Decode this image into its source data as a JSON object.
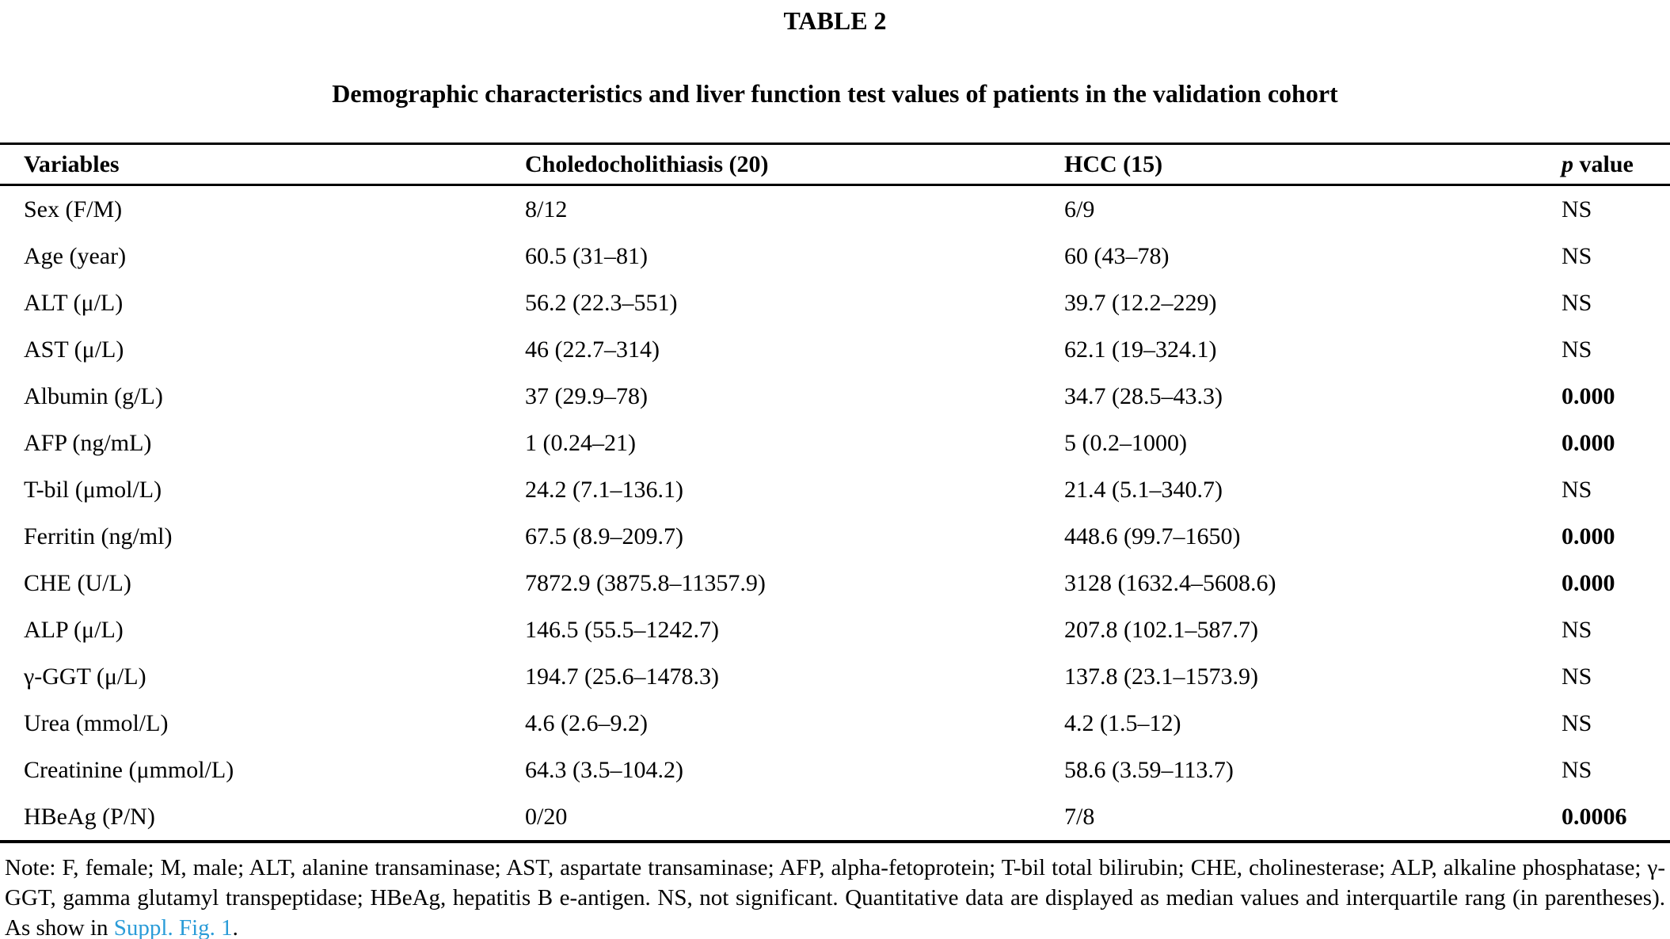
{
  "table": {
    "label": "TABLE 2",
    "caption": "Demographic characteristics and liver function test values of patients in the validation cohort",
    "columns": [
      "Variables",
      "Choledocholithiasis (20)",
      "HCC (15)"
    ],
    "p_header_italic": "p",
    "p_header_rest": " value",
    "not_significant_marker": "NS",
    "rows": [
      {
        "variable": "Sex (F/M)",
        "choledocholithiasis": "8/12",
        "hcc": "6/9",
        "p": "NS"
      },
      {
        "variable": "Age (year)",
        "choledocholithiasis": "60.5 (31–81)",
        "hcc": "60 (43–78)",
        "p": "NS"
      },
      {
        "variable": "ALT (μ/L)",
        "choledocholithiasis": "56.2 (22.3–551)",
        "hcc": "39.7 (12.2–229)",
        "p": "NS"
      },
      {
        "variable": "AST (μ/L)",
        "choledocholithiasis": "46 (22.7–314)",
        "hcc": "62.1 (19–324.1)",
        "p": "NS"
      },
      {
        "variable": "Albumin (g/L)",
        "choledocholithiasis": "37 (29.9–78)",
        "hcc": "34.7 (28.5–43.3)",
        "p": "0.000"
      },
      {
        "variable": "AFP (ng/mL)",
        "choledocholithiasis": "1 (0.24–21)",
        "hcc": "5 (0.2–1000)",
        "p": "0.000"
      },
      {
        "variable": "T-bil (μmol/L)",
        "choledocholithiasis": "24.2 (7.1–136.1)",
        "hcc": "21.4 (5.1–340.7)",
        "p": "NS"
      },
      {
        "variable": "Ferritin (ng/ml)",
        "choledocholithiasis": "67.5 (8.9–209.7)",
        "hcc": "448.6 (99.7–1650)",
        "p": "0.000"
      },
      {
        "variable": "CHE (U/L)",
        "choledocholithiasis": "7872.9 (3875.8–11357.9)",
        "hcc": "3128 (1632.4–5608.6)",
        "p": "0.000"
      },
      {
        "variable": "ALP (μ/L)",
        "choledocholithiasis": "146.5 (55.5–1242.7)",
        "hcc": "207.8 (102.1–587.7)",
        "p": "NS"
      },
      {
        "variable": "γ-GGT (μ/L)",
        "choledocholithiasis": "194.7 (25.6–1478.3)",
        "hcc": "137.8 (23.1–1573.9)",
        "p": "NS"
      },
      {
        "variable": "Urea (mmol/L)",
        "choledocholithiasis": "4.6 (2.6–9.2)",
        "hcc": "4.2 (1.5–12)",
        "p": "NS"
      },
      {
        "variable": "Creatinine (μmmol/L)",
        "choledocholithiasis": "64.3 (3.5–104.2)",
        "hcc": "58.6 (3.59–113.7)",
        "p": "NS"
      },
      {
        "variable": "HBeAg (P/N)",
        "choledocholithiasis": "0/20",
        "hcc": "7/8",
        "p": "0.0006"
      }
    ]
  },
  "note": {
    "text_before_link": "Note: F, female; M, male; ALT, alanine transaminase; AST, aspartate transaminase; AFP, alpha-fetoprotein; T-bil total bilirubin; CHE, cholinesterase; ALP, alkaline phosphatase; γ-GGT, gamma glutamyl transpeptidase; HBeAg, hepatitis B e-antigen. NS, not significant. Quantitative data are displayed as median values and interquartile rang (in parentheses). As show in ",
    "link_text": "Suppl. Fig. 1",
    "text_after_link": "."
  },
  "colors": {
    "text": "#000000",
    "rule": "#000000",
    "link": "#2b9cd8"
  }
}
